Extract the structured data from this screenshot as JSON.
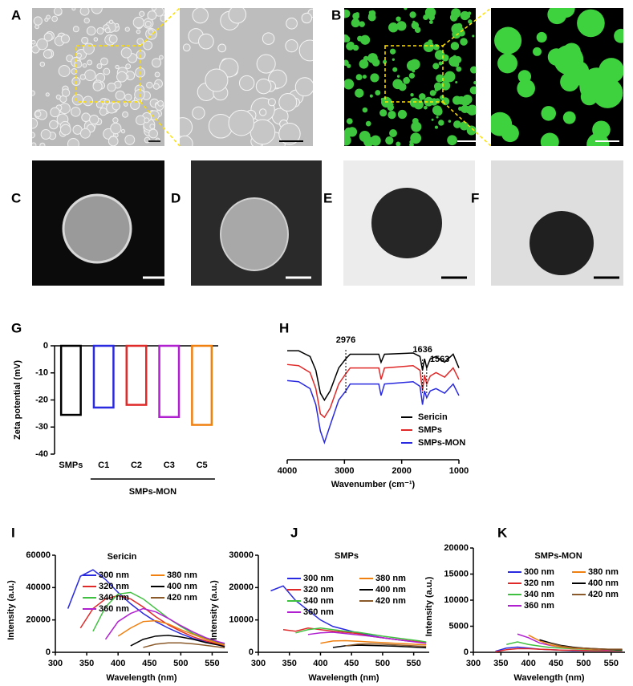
{
  "panel_labels": [
    "A",
    "B",
    "C",
    "D",
    "E",
    "F",
    "G",
    "H",
    "I",
    "J",
    "K"
  ],
  "chart_data": [
    {
      "type": "bar",
      "categories": [
        "SMPs",
        "C1",
        "C2",
        "C3",
        "C5"
      ],
      "values": [
        -25.5,
        -22.8,
        -21.8,
        -26.3,
        -29.2
      ],
      "colors": [
        "#000000",
        "#2a2ae0",
        "#e02a2a",
        "#b020d0",
        "#f08010"
      ],
      "ylabel": "Zeta potential (mV)",
      "group_label": "SMPs-MON",
      "ylim": [
        -40,
        0
      ],
      "yticks": [
        -40,
        -30,
        -20,
        -10,
        0
      ]
    },
    {
      "type": "line",
      "xlabel": "Wavenumber (cm⁻¹)",
      "xlim": [
        4000,
        1000
      ],
      "xticks": [
        4000,
        3000,
        2000,
        1000
      ],
      "ylim": [
        0,
        100
      ],
      "annotations": [
        2976,
        1636,
        1563
      ],
      "x": [
        4000,
        3800,
        3600,
        3500,
        3420,
        3350,
        3250,
        3100,
        2976,
        2900,
        2400,
        2360,
        2300,
        1800,
        1680,
        1636,
        1600,
        1563,
        1500,
        1400,
        1250,
        1100,
        1000
      ],
      "series": [
        {
          "name": "Sericin",
          "color": "#000000",
          "values": [
            95,
            95,
            90,
            78,
            58,
            52,
            60,
            80,
            88,
            92,
            92,
            85,
            92,
            93,
            90,
            78,
            88,
            80,
            88,
            90,
            85,
            92,
            80
          ]
        },
        {
          "name": "SMPs",
          "color": "#e02a2a",
          "values": [
            83,
            82,
            76,
            62,
            40,
            37,
            45,
            66,
            75,
            80,
            80,
            70,
            80,
            82,
            78,
            60,
            74,
            66,
            73,
            76,
            72,
            80,
            70
          ]
        },
        {
          "name": "SMPs-MON",
          "color": "#2a2ae0",
          "values": [
            69,
            68,
            62,
            48,
            25,
            15,
            30,
            52,
            60,
            66,
            66,
            56,
            66,
            68,
            64,
            48,
            60,
            54,
            60,
            62,
            58,
            66,
            56
          ]
        }
      ]
    },
    {
      "type": "spectrum",
      "title": "Sericin",
      "xlabel": "Wavelength (nm)",
      "ylabel": "Intensity (a.u.)",
      "xlim": [
        300,
        575
      ],
      "xticks": [
        300,
        350,
        400,
        450,
        500,
        550
      ],
      "ylim": [
        0,
        60000
      ],
      "yticks": [
        0,
        20000,
        40000,
        60000
      ],
      "x": [
        320,
        340,
        360,
        380,
        400,
        420,
        440,
        460,
        480,
        500,
        520,
        540,
        560,
        570
      ],
      "series": [
        {
          "name": "300 nm",
          "color": "#2a2ae0",
          "values": [
            27000,
            47000,
            51000,
            45000,
            37000,
            30000,
            24000,
            19000,
            15000,
            11500,
            8500,
            6500,
            4500,
            3500
          ]
        },
        {
          "name": "320 nm",
          "color": "#e02a2a",
          "values": [
            null,
            15000,
            27000,
            33000,
            35000,
            33000,
            28000,
            22000,
            17000,
            13000,
            9500,
            7000,
            5000,
            4000
          ]
        },
        {
          "name": "340 nm",
          "color": "#40c040",
          "values": [
            null,
            null,
            13000,
            28000,
            36000,
            37000,
            33000,
            27000,
            21000,
            16000,
            11500,
            8500,
            6000,
            5000
          ]
        },
        {
          "name": "360 nm",
          "color": "#b020d0",
          "values": [
            null,
            null,
            null,
            8000,
            19000,
            24000,
            27000,
            25000,
            21000,
            16500,
            12500,
            9000,
            6500,
            5500
          ]
        },
        {
          "name": "380 nm",
          "color": "#f08010",
          "values": [
            null,
            null,
            null,
            null,
            10000,
            15000,
            19000,
            19500,
            17500,
            14000,
            11000,
            8000,
            5500,
            4500
          ]
        },
        {
          "name": "400 nm",
          "color": "#000000",
          "values": [
            null,
            null,
            null,
            null,
            null,
            4000,
            8000,
            10000,
            10500,
            9500,
            8000,
            6000,
            4500,
            3500
          ]
        },
        {
          "name": "420 nm",
          "color": "#8b5a2b",
          "values": [
            null,
            null,
            null,
            null,
            null,
            null,
            3000,
            5000,
            5800,
            5800,
            5200,
            4300,
            3300,
            2800
          ]
        }
      ]
    },
    {
      "type": "spectrum",
      "title": "SMPs",
      "xlabel": "Wavelength (nm)",
      "ylabel": "Intensity (a.u.)",
      "xlim": [
        300,
        575
      ],
      "xticks": [
        300,
        350,
        400,
        450,
        500,
        550
      ],
      "ylim": [
        0,
        30000
      ],
      "yticks": [
        0,
        10000,
        20000,
        30000
      ],
      "x": [
        320,
        340,
        360,
        380,
        400,
        420,
        440,
        460,
        480,
        500,
        520,
        540,
        560,
        570
      ],
      "series": [
        {
          "name": "300 nm",
          "color": "#2a2ae0",
          "values": [
            19000,
            20500,
            16000,
            13000,
            10000,
            8000,
            7000,
            6000,
            5200,
            4500,
            4000,
            3500,
            3200,
            3000
          ]
        },
        {
          "name": "320 nm",
          "color": "#e02a2a",
          "values": [
            null,
            7000,
            6500,
            7500,
            7000,
            6500,
            6200,
            5800,
            5000,
            4500,
            4000,
            3600,
            3200,
            3000
          ]
        },
        {
          "name": "340 nm",
          "color": "#40c040",
          "values": [
            null,
            null,
            6000,
            7000,
            7500,
            7000,
            6500,
            6200,
            5600,
            5000,
            4500,
            4000,
            3500,
            3200
          ]
        },
        {
          "name": "360 nm",
          "color": "#b020d0",
          "values": [
            null,
            null,
            null,
            5500,
            6000,
            6200,
            5800,
            5400,
            5000,
            4500,
            4000,
            3500,
            3000,
            2800
          ]
        },
        {
          "name": "380 nm",
          "color": "#f08010",
          "values": [
            null,
            null,
            null,
            null,
            2800,
            3500,
            3600,
            3400,
            3200,
            3000,
            2800,
            2600,
            2400,
            2300
          ]
        },
        {
          "name": "400 nm",
          "color": "#000000",
          "values": [
            null,
            null,
            null,
            null,
            null,
            1500,
            2000,
            2200,
            2100,
            2000,
            1900,
            1700,
            1500,
            1400
          ]
        },
        {
          "name": "420 nm",
          "color": "#8b5a2b",
          "values": [
            null,
            null,
            null,
            null,
            null,
            null,
            2000,
            2500,
            2600,
            2500,
            2300,
            2100,
            1900,
            1800
          ]
        }
      ]
    },
    {
      "type": "spectrum",
      "title": "SMPs-MON",
      "xlabel": "Wavelength (nm)",
      "ylabel": "Intensity (a.u.)",
      "xlim": [
        300,
        575
      ],
      "xticks": [
        300,
        350,
        400,
        450,
        500,
        550
      ],
      "ylim": [
        0,
        20000
      ],
      "yticks": [
        0,
        5000,
        10000,
        15000,
        20000
      ],
      "x": [
        320,
        340,
        360,
        380,
        400,
        420,
        440,
        460,
        480,
        500,
        520,
        540,
        560,
        570
      ],
      "series": [
        {
          "name": "300 nm",
          "color": "#2a2ae0",
          "values": [
            null,
            200,
            800,
            1000,
            800,
            600,
            500,
            400,
            300,
            300,
            300,
            300,
            300,
            300
          ]
        },
        {
          "name": "320 nm",
          "color": "#e02a2a",
          "values": [
            null,
            100,
            500,
            700,
            700,
            600,
            500,
            400,
            400,
            350,
            300,
            300,
            300,
            300
          ]
        },
        {
          "name": "340 nm",
          "color": "#40c040",
          "values": [
            null,
            null,
            1500,
            2000,
            1500,
            1200,
            900,
            800,
            700,
            600,
            500,
            500,
            400,
            400
          ]
        },
        {
          "name": "360 nm",
          "color": "#b020d0",
          "values": [
            null,
            null,
            null,
            3500,
            2800,
            1800,
            1300,
            1000,
            800,
            700,
            600,
            500,
            500,
            500
          ]
        },
        {
          "name": "380 nm",
          "color": "#f08010",
          "values": [
            null,
            null,
            null,
            null,
            3300,
            2200,
            1400,
            1000,
            800,
            700,
            600,
            600,
            500,
            500
          ]
        },
        {
          "name": "400 nm",
          "color": "#000000",
          "values": [
            null,
            null,
            null,
            null,
            null,
            2400,
            1800,
            1300,
            1000,
            800,
            700,
            600,
            500,
            500
          ]
        },
        {
          "name": "420 nm",
          "color": "#8b5a2b",
          "values": [
            null,
            null,
            null,
            null,
            null,
            null,
            1700,
            1200,
            900,
            800,
            700,
            600,
            600,
            600
          ]
        }
      ]
    }
  ]
}
